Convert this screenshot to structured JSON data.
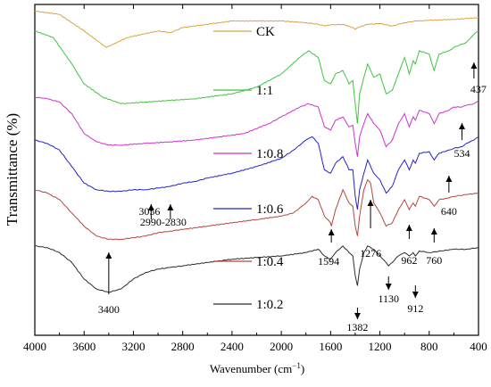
{
  "chart_data": {
    "type": "line",
    "xlabel": "Wavenumber (cm",
    "xlabel_sup": "−1",
    "xlabel_close": ")",
    "ylabel": "Transmittance (%)",
    "xlim": [
      4000,
      400
    ],
    "x_ticks": [
      4000,
      3600,
      3200,
      2800,
      2400,
      2000,
      1600,
      1200,
      800,
      400
    ],
    "x_tick_labels": [
      "4000",
      "3600",
      "3200",
      "2800",
      "2400",
      "2000",
      "1600",
      "1200",
      "800",
      "400"
    ],
    "y_ticks_shown": false,
    "ylim": [
      0,
      100
    ],
    "series": [
      {
        "name": "CK",
        "color": "#d9a441",
        "offset": 93,
        "points": [
          [
            4000,
            98
          ],
          [
            3800,
            97
          ],
          [
            3600,
            92
          ],
          [
            3420,
            87
          ],
          [
            3250,
            90
          ],
          [
            3000,
            92
          ],
          [
            2900,
            91.5
          ],
          [
            2800,
            93
          ],
          [
            2400,
            95
          ],
          [
            2000,
            95
          ],
          [
            1800,
            94.5
          ],
          [
            1700,
            94
          ],
          [
            1650,
            93.5
          ],
          [
            1600,
            93.8
          ],
          [
            1500,
            94
          ],
          [
            1420,
            93
          ],
          [
            1400,
            92.5
          ],
          [
            1380,
            93
          ],
          [
            1300,
            94
          ],
          [
            1200,
            94.2
          ],
          [
            1100,
            93.5
          ],
          [
            1000,
            94.5
          ],
          [
            900,
            95
          ],
          [
            800,
            95.2
          ],
          [
            600,
            95.5
          ],
          [
            400,
            96
          ]
        ]
      },
      {
        "name": "1:1",
        "color": "#3fc63f",
        "offset": 74,
        "points": [
          [
            4000,
            92
          ],
          [
            3850,
            90
          ],
          [
            3700,
            82
          ],
          [
            3600,
            76
          ],
          [
            3450,
            72
          ],
          [
            3300,
            70
          ],
          [
            3100,
            70.5
          ],
          [
            2900,
            71
          ],
          [
            2700,
            71.5
          ],
          [
            2400,
            73
          ],
          [
            2200,
            75
          ],
          [
            2000,
            79
          ],
          [
            1850,
            84
          ],
          [
            1780,
            86
          ],
          [
            1700,
            84
          ],
          [
            1650,
            77
          ],
          [
            1600,
            76
          ],
          [
            1560,
            79
          ],
          [
            1500,
            80
          ],
          [
            1450,
            76
          ],
          [
            1420,
            77
          ],
          [
            1400,
            70
          ],
          [
            1382,
            64
          ],
          [
            1365,
            73
          ],
          [
            1330,
            78
          ],
          [
            1300,
            82
          ],
          [
            1250,
            78
          ],
          [
            1200,
            79
          ],
          [
            1150,
            73
          ],
          [
            1100,
            74
          ],
          [
            1050,
            79
          ],
          [
            1000,
            84
          ],
          [
            962,
            79
          ],
          [
            930,
            83
          ],
          [
            912,
            82
          ],
          [
            880,
            86
          ],
          [
            800,
            85
          ],
          [
            760,
            80
          ],
          [
            720,
            85
          ],
          [
            640,
            86
          ],
          [
            600,
            87
          ],
          [
            534,
            88
          ],
          [
            500,
            88.5
          ],
          [
            460,
            90
          ],
          [
            437,
            91
          ],
          [
            400,
            92
          ]
        ]
      },
      {
        "name": "1:0.8",
        "color": "#cc33cc",
        "offset": 61,
        "points": [
          [
            4000,
            72
          ],
          [
            3900,
            71.5
          ],
          [
            3800,
            70.5
          ],
          [
            3700,
            67
          ],
          [
            3600,
            61
          ],
          [
            3500,
            58.5
          ],
          [
            3400,
            57.5
          ],
          [
            3300,
            57.5
          ],
          [
            3100,
            58
          ],
          [
            2900,
            58.5
          ],
          [
            2700,
            59
          ],
          [
            2500,
            60
          ],
          [
            2300,
            61
          ],
          [
            2100,
            64
          ],
          [
            2000,
            66
          ],
          [
            1850,
            69
          ],
          [
            1780,
            70
          ],
          [
            1700,
            69
          ],
          [
            1650,
            63
          ],
          [
            1600,
            62
          ],
          [
            1560,
            65
          ],
          [
            1500,
            66
          ],
          [
            1450,
            63
          ],
          [
            1420,
            63.5
          ],
          [
            1400,
            58
          ],
          [
            1382,
            54
          ],
          [
            1365,
            60
          ],
          [
            1330,
            64
          ],
          [
            1300,
            67
          ],
          [
            1250,
            64
          ],
          [
            1200,
            62
          ],
          [
            1150,
            57
          ],
          [
            1100,
            59
          ],
          [
            1050,
            64
          ],
          [
            1000,
            67
          ],
          [
            962,
            63
          ],
          [
            930,
            66
          ],
          [
            912,
            65
          ],
          [
            880,
            68
          ],
          [
            800,
            67
          ],
          [
            760,
            64
          ],
          [
            720,
            67
          ],
          [
            640,
            68
          ],
          [
            600,
            69
          ],
          [
            534,
            69
          ],
          [
            500,
            69.5
          ],
          [
            437,
            70
          ],
          [
            400,
            71
          ]
        ]
      },
      {
        "name": "1:0.6",
        "color": "#2323c8",
        "offset": 44,
        "points": [
          [
            4000,
            59
          ],
          [
            3900,
            58
          ],
          [
            3800,
            56
          ],
          [
            3700,
            51
          ],
          [
            3600,
            46
          ],
          [
            3500,
            44
          ],
          [
            3400,
            43.5
          ],
          [
            3300,
            43.5
          ],
          [
            3200,
            44
          ],
          [
            3100,
            44
          ],
          [
            3000,
            44.5
          ],
          [
            2900,
            45
          ],
          [
            2800,
            46
          ],
          [
            2700,
            46.5
          ],
          [
            2600,
            47.5
          ],
          [
            2400,
            49
          ],
          [
            2200,
            51
          ],
          [
            2000,
            53.5
          ],
          [
            1900,
            56
          ],
          [
            1800,
            59
          ],
          [
            1750,
            60
          ],
          [
            1700,
            58
          ],
          [
            1650,
            50
          ],
          [
            1600,
            49
          ],
          [
            1560,
            52
          ],
          [
            1500,
            54
          ],
          [
            1450,
            50
          ],
          [
            1420,
            50
          ],
          [
            1400,
            42
          ],
          [
            1382,
            38
          ],
          [
            1365,
            44
          ],
          [
            1330,
            49
          ],
          [
            1300,
            53
          ],
          [
            1250,
            49
          ],
          [
            1200,
            47
          ],
          [
            1150,
            43
          ],
          [
            1100,
            45
          ],
          [
            1050,
            50
          ],
          [
            1000,
            53
          ],
          [
            962,
            50
          ],
          [
            930,
            53
          ],
          [
            912,
            52
          ],
          [
            880,
            55
          ],
          [
            800,
            55.5
          ],
          [
            760,
            53
          ],
          [
            720,
            55
          ],
          [
            640,
            56
          ],
          [
            600,
            56.5
          ],
          [
            534,
            57
          ],
          [
            500,
            58
          ],
          [
            437,
            59
          ],
          [
            400,
            60
          ]
        ]
      },
      {
        "name": "1:0.4",
        "color": "#b5453a",
        "offset": 30,
        "points": [
          [
            4000,
            44
          ],
          [
            3900,
            43
          ],
          [
            3800,
            41
          ],
          [
            3700,
            37
          ],
          [
            3600,
            33
          ],
          [
            3500,
            30
          ],
          [
            3400,
            29
          ],
          [
            3300,
            29
          ],
          [
            3200,
            29.5
          ],
          [
            3100,
            30
          ],
          [
            3000,
            31
          ],
          [
            2900,
            31.5
          ],
          [
            2800,
            32
          ],
          [
            2600,
            33
          ],
          [
            2400,
            34
          ],
          [
            2200,
            35
          ],
          [
            2000,
            36
          ],
          [
            1900,
            37
          ],
          [
            1800,
            40
          ],
          [
            1750,
            42
          ],
          [
            1700,
            41
          ],
          [
            1650,
            36
          ],
          [
            1600,
            34
          ],
          [
            1594,
            33
          ],
          [
            1560,
            38
          ],
          [
            1500,
            44
          ],
          [
            1450,
            40
          ],
          [
            1420,
            39
          ],
          [
            1400,
            33
          ],
          [
            1382,
            30
          ],
          [
            1365,
            36
          ],
          [
            1330,
            44
          ],
          [
            1300,
            47
          ],
          [
            1276,
            46
          ],
          [
            1250,
            40
          ],
          [
            1200,
            37
          ],
          [
            1150,
            33
          ],
          [
            1100,
            34
          ],
          [
            1050,
            38
          ],
          [
            1000,
            41
          ],
          [
            962,
            38
          ],
          [
            930,
            40
          ],
          [
            912,
            39
          ],
          [
            880,
            42
          ],
          [
            800,
            41
          ],
          [
            760,
            39
          ],
          [
            720,
            41
          ],
          [
            640,
            41.5
          ],
          [
            600,
            42
          ],
          [
            500,
            42.5
          ],
          [
            400,
            43
          ]
        ]
      },
      {
        "name": "1:0.2",
        "color": "#2b2b2b",
        "offset": 14,
        "points": [
          [
            4000,
            27
          ],
          [
            3900,
            26.5
          ],
          [
            3800,
            25
          ],
          [
            3700,
            22
          ],
          [
            3600,
            17
          ],
          [
            3500,
            14
          ],
          [
            3400,
            13
          ],
          [
            3300,
            14
          ],
          [
            3200,
            17
          ],
          [
            3100,
            19
          ],
          [
            3000,
            20
          ],
          [
            2900,
            20.5
          ],
          [
            2800,
            21
          ],
          [
            2600,
            22
          ],
          [
            2400,
            23
          ],
          [
            2200,
            23.5
          ],
          [
            2000,
            24
          ],
          [
            1800,
            25
          ],
          [
            1700,
            26
          ],
          [
            1650,
            24
          ],
          [
            1600,
            23
          ],
          [
            1560,
            25
          ],
          [
            1500,
            27
          ],
          [
            1450,
            25
          ],
          [
            1420,
            24
          ],
          [
            1400,
            18
          ],
          [
            1382,
            15
          ],
          [
            1365,
            20
          ],
          [
            1330,
            25
          ],
          [
            1300,
            27
          ],
          [
            1250,
            26
          ],
          [
            1200,
            24
          ],
          [
            1150,
            22
          ],
          [
            1130,
            21
          ],
          [
            1100,
            22
          ],
          [
            1050,
            24
          ],
          [
            1000,
            25
          ],
          [
            962,
            24
          ],
          [
            930,
            25
          ],
          [
            912,
            24
          ],
          [
            880,
            25.5
          ],
          [
            800,
            25
          ],
          [
            700,
            25.5
          ],
          [
            600,
            26
          ],
          [
            500,
            26
          ],
          [
            400,
            26.5
          ]
        ]
      }
    ],
    "legend": [
      {
        "label": "CK",
        "color": "#d9a441"
      },
      {
        "label": "1:1",
        "color": "#3fc63f"
      },
      {
        "label": "1:0.8",
        "color": "#cc33cc"
      },
      {
        "label": "1:0.6",
        "color": "#2323c8"
      },
      {
        "label": "1:0.4",
        "color": "#b5453a"
      },
      {
        "label": "1:0.2",
        "color": "#2b2b2b"
      }
    ],
    "annotations": [
      {
        "label": "437",
        "x": 437
      },
      {
        "label": "534",
        "x": 534
      },
      {
        "label": "640",
        "x": 640
      },
      {
        "label": "3056",
        "x": 3056
      },
      {
        "label": "2990-2830",
        "x": 2900
      },
      {
        "label": "1594",
        "x": 1594
      },
      {
        "label": "1276",
        "x": 1276
      },
      {
        "label": "962",
        "x": 962
      },
      {
        "label": "760",
        "x": 760
      },
      {
        "label": "3400",
        "x": 3400
      },
      {
        "label": "1382",
        "x": 1382
      },
      {
        "label": "1130",
        "x": 1130
      },
      {
        "label": "912",
        "x": 912
      }
    ],
    "grid": false
  }
}
